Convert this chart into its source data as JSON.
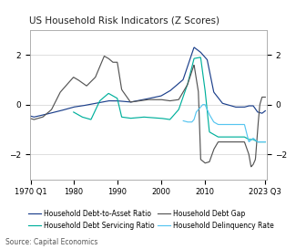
{
  "title": "US Household Risk Indicators (Z Scores)",
  "source": "Source: Capital Economics",
  "ylim": [
    -3,
    3
  ],
  "yticks": [
    -2,
    0,
    2
  ],
  "xtick_labels": [
    "1970 Q1",
    "1980",
    "1990",
    "2000",
    "2010",
    "2023 Q3"
  ],
  "xtick_positions": [
    1970.25,
    1980,
    1990,
    2000,
    2010,
    2023.75
  ],
  "colors": {
    "dta": "#1b3f8b",
    "dsr": "#00b09c",
    "ddg": "#555555",
    "dlq": "#56c5f0"
  },
  "legend": [
    "Household Debt-to-Asset Ratio",
    "Household Debt Servicing Ratio",
    "Household Debt Gap",
    "Household Delinquency Rate"
  ],
  "background_color": "#ffffff",
  "grid_color": "#d0d0d0",
  "dta_x": [
    1970,
    1971,
    1973,
    1977,
    1980,
    1982,
    1985,
    1988,
    1990,
    1993,
    1996,
    2000,
    2002,
    2005,
    2007.5,
    2009,
    2010.5,
    2012,
    2014,
    2017,
    2019,
    2020,
    2021,
    2022,
    2023,
    2023.75
  ],
  "dta_y": [
    -0.45,
    -0.5,
    -0.42,
    -0.25,
    -0.1,
    -0.05,
    0.05,
    0.15,
    0.15,
    0.1,
    0.2,
    0.35,
    0.55,
    1.0,
    2.3,
    2.1,
    1.8,
    0.5,
    0.05,
    -0.1,
    -0.1,
    -0.05,
    -0.05,
    -0.3,
    -0.35,
    -0.25
  ],
  "dsr_x": [
    1980,
    1982,
    1984,
    1986,
    1988,
    1990,
    1991,
    1993,
    1996,
    2000,
    2002,
    2004,
    2006,
    2007.5,
    2009,
    2010,
    2011,
    2013,
    2016,
    2019,
    2020,
    2021,
    2022,
    2023.75
  ],
  "dsr_y": [
    -0.3,
    -0.5,
    -0.6,
    0.15,
    0.45,
    0.25,
    -0.5,
    -0.55,
    -0.5,
    -0.55,
    -0.6,
    -0.2,
    0.8,
    1.85,
    1.9,
    0.6,
    -1.1,
    -1.3,
    -1.3,
    -1.3,
    -1.4,
    -1.4,
    -1.5,
    -1.5
  ],
  "ddg_x": [
    1970,
    1971,
    1973,
    1975,
    1977,
    1979,
    1980,
    1981,
    1983,
    1985,
    1987,
    1988,
    1989,
    1990,
    1991,
    1993,
    1995,
    1997,
    2000,
    2002,
    2004,
    2006,
    2007.5,
    2008.5,
    2009,
    2010,
    2011,
    2012,
    2013,
    2015,
    2018,
    2019,
    2020,
    2020.5,
    2021,
    2021.5,
    2022,
    2022.5,
    2023,
    2023.75
  ],
  "ddg_y": [
    -0.55,
    -0.6,
    -0.5,
    -0.2,
    0.5,
    0.9,
    1.1,
    1.0,
    0.75,
    1.1,
    1.95,
    1.85,
    1.7,
    1.7,
    0.6,
    0.1,
    0.15,
    0.2,
    0.2,
    0.15,
    0.2,
    0.8,
    1.6,
    0.5,
    -2.2,
    -2.35,
    -2.3,
    -1.8,
    -1.5,
    -1.5,
    -1.5,
    -1.5,
    -2.0,
    -2.5,
    -2.4,
    -2.2,
    -1.0,
    0.0,
    0.3,
    0.3
  ],
  "dlq_x": [
    2005,
    2006,
    2007,
    2007.5,
    2008,
    2009.5,
    2010,
    2011,
    2012,
    2013,
    2015,
    2017,
    2019,
    2020,
    2021,
    2022,
    2023,
    2023.75
  ],
  "dlq_y": [
    -0.65,
    -0.7,
    -0.7,
    -0.6,
    -0.3,
    0.0,
    0.0,
    -0.4,
    -0.7,
    -0.8,
    -0.8,
    -0.8,
    -0.8,
    -1.5,
    -1.35,
    -1.5,
    -1.5,
    -1.5
  ]
}
